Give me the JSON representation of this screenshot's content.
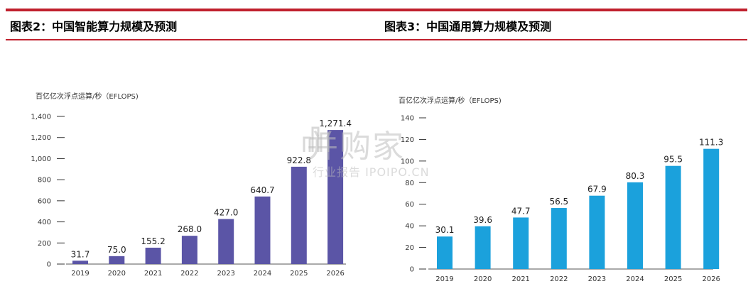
{
  "page": {
    "accent_color": "#c0202d",
    "left_title": "图表2：中国智能算力规模及预测",
    "right_title": "图表3：中国通用算力规模及预测"
  },
  "watermark": {
    "main": "并购家",
    "sub": "行业报告 IPOIPO.CN",
    "icon": "building-logo-icon"
  },
  "chart_data": [
    {
      "type": "bar",
      "unit_label": "百亿亿次浮点运算/秒（EFLOPS)",
      "categories": [
        "2019",
        "2020",
        "2021",
        "2022",
        "2023",
        "2024",
        "2025",
        "2026"
      ],
      "values": [
        31.7,
        75.0,
        155.2,
        268.0,
        427.0,
        640.7,
        922.8,
        1271.4
      ],
      "value_labels": [
        "31.7",
        "75.0",
        "155.2",
        "268.0",
        "427.0",
        "640.7",
        "922.8",
        "1,271.4"
      ],
      "yticks": [
        0,
        200,
        400,
        600,
        800,
        1000,
        1200,
        1400
      ],
      "ytick_labels": [
        "0",
        "200",
        "400",
        "600",
        "800",
        "1,000",
        "1,200",
        "1,400"
      ],
      "ylim": [
        0,
        1400
      ],
      "color": "#5b55a6"
    },
    {
      "type": "bar",
      "unit_label": "百亿亿次浮点运算/秒（EFLOPS)",
      "categories": [
        "2019",
        "2020",
        "2021",
        "2022",
        "2023",
        "2024",
        "2025",
        "2026"
      ],
      "values": [
        30.1,
        39.6,
        47.7,
        56.5,
        67.9,
        80.3,
        95.5,
        111.3
      ],
      "value_labels": [
        "30.1",
        "39.6",
        "47.7",
        "56.5",
        "67.9",
        "80.3",
        "95.5",
        "111.3"
      ],
      "yticks": [
        0,
        20,
        40,
        60,
        80,
        100,
        120,
        140
      ],
      "ytick_labels": [
        "0",
        "20",
        "40",
        "60",
        "80",
        "100",
        "120",
        "140"
      ],
      "ylim": [
        0,
        140
      ],
      "color": "#1ba1dc"
    }
  ]
}
